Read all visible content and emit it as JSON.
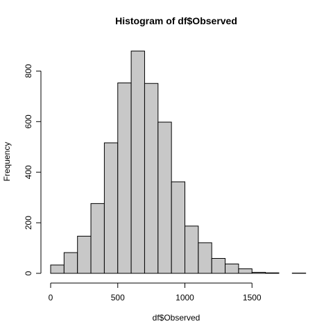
{
  "chart_data": {
    "type": "bar",
    "title": "Histogram of df$Observed",
    "xlabel": "df$Observed",
    "ylabel": "Frequency",
    "bar_color": "#c8c8c8",
    "bar_border_color": "#000000",
    "bin_width": 100,
    "bins": [
      {
        "start": 0,
        "end": 100,
        "count": 33
      },
      {
        "start": 100,
        "end": 200,
        "count": 82
      },
      {
        "start": 200,
        "end": 300,
        "count": 147
      },
      {
        "start": 300,
        "end": 400,
        "count": 276
      },
      {
        "start": 400,
        "end": 500,
        "count": 516
      },
      {
        "start": 500,
        "end": 600,
        "count": 753
      },
      {
        "start": 600,
        "end": 700,
        "count": 879
      },
      {
        "start": 700,
        "end": 800,
        "count": 751
      },
      {
        "start": 800,
        "end": 900,
        "count": 598
      },
      {
        "start": 900,
        "end": 1000,
        "count": 362
      },
      {
        "start": 1000,
        "end": 1100,
        "count": 187
      },
      {
        "start": 1100,
        "end": 1200,
        "count": 121
      },
      {
        "start": 1200,
        "end": 1300,
        "count": 59
      },
      {
        "start": 1300,
        "end": 1400,
        "count": 37
      },
      {
        "start": 1400,
        "end": 1500,
        "count": 18
      },
      {
        "start": 1500,
        "end": 1600,
        "count": 4
      },
      {
        "start": 1600,
        "end": 1700,
        "count": 2
      },
      {
        "start": 1700,
        "end": 1800,
        "count": 0
      },
      {
        "start": 1800,
        "end": 1900,
        "count": 1
      }
    ],
    "xlim": [
      0,
      1900
    ],
    "ylim": [
      0,
      900
    ],
    "x_ticks": [
      0,
      500,
      1000,
      1500
    ],
    "x_tick_labels": [
      "0",
      "500",
      "1000",
      "1500"
    ],
    "y_ticks": [
      0,
      200,
      400,
      600,
      800
    ],
    "y_tick_labels": [
      "0",
      "200",
      "400",
      "600",
      "800"
    ],
    "grid": false,
    "legend": "none"
  }
}
